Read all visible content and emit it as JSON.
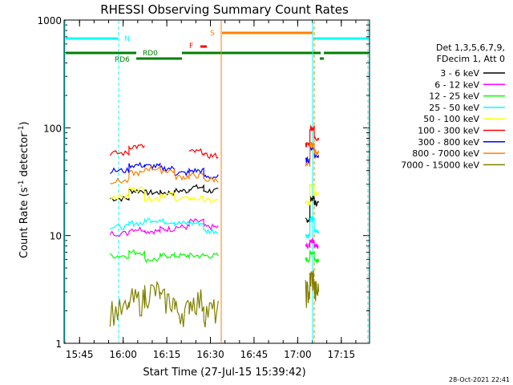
{
  "chart_data": {
    "type": "line",
    "title": "RHESSI Observing Summary Count Rates",
    "xlabel": "Start Time (27-Jul-15 15:39:42)",
    "ylabel": "Count Rate (s",
    "ylabel_sup1": "-1",
    "ylabel_mid": " detector",
    "ylabel_sup2": "-1",
    "ylabel_end": ")",
    "yscale": "log",
    "ylim": [
      1,
      1000
    ],
    "xlim_min": [
      0,
      105
    ],
    "x_start": "15:39:42",
    "x_ticks": [
      {
        "label": "15:45",
        "t": 5.3
      },
      {
        "label": "16:00",
        "t": 20.3
      },
      {
        "label": "16:15",
        "t": 35.3
      },
      {
        "label": "16:30",
        "t": 50.3
      },
      {
        "label": "16:45",
        "t": 65.3
      },
      {
        "label": "17:00",
        "t": 80.3
      },
      {
        "label": "17:15",
        "t": 95.3
      }
    ],
    "y_ticks": [
      {
        "label": "1",
        "v": 1
      },
      {
        "label": "10",
        "v": 10
      },
      {
        "label": "100",
        "v": 100
      },
      {
        "label": "1000",
        "v": 1000
      }
    ],
    "legend_header": [
      "Det 1,3,5,6,7,9,",
      "FDecim 1, Att 0"
    ],
    "legend_position": "right",
    "series": [
      {
        "name": "3 - 6 keV",
        "color": "#000000",
        "values": [
          22,
          26,
          25,
          25,
          26,
          28,
          26,
          0,
          0,
          14,
          22,
          20
        ]
      },
      {
        "name": "6 - 12 keV",
        "color": "#ff00ff",
        "values": [
          10.5,
          11.5,
          11,
          11.5,
          12,
          13.5,
          12,
          0,
          0,
          8,
          9,
          8
        ]
      },
      {
        "name": "12 - 25 keV",
        "color": "#00ff00",
        "values": [
          6.5,
          7,
          6,
          6.5,
          6.5,
          6.5,
          6.5,
          0,
          0,
          6,
          7,
          6
        ]
      },
      {
        "name": "25 - 50 keV",
        "color": "#00ffff",
        "values": [
          12,
          13,
          14,
          13.5,
          13,
          13,
          11,
          0,
          0,
          10,
          14,
          11
        ]
      },
      {
        "name": "50 - 100 keV",
        "color": "#ffff00",
        "values": [
          23,
          27,
          22,
          24,
          22,
          22,
          21,
          0,
          0,
          20,
          30,
          25
        ]
      },
      {
        "name": "100 - 300 keV",
        "color": "#ff0000",
        "values": [
          58,
          67,
          0,
          0,
          0,
          60,
          55,
          0,
          0,
          70,
          100,
          80
        ]
      },
      {
        "name": "300 - 800 keV",
        "color": "#0000ff",
        "values": [
          40,
          45,
          44,
          42,
          38,
          40,
          35,
          0,
          0,
          50,
          65,
          55
        ]
      },
      {
        "name": "800 - 7000 keV",
        "color": "#ff8000",
        "values": [
          32,
          38,
          42,
          40,
          35,
          36,
          33,
          0,
          0,
          45,
          70,
          60
        ]
      },
      {
        "name": "7000 - 15000 keV",
        "color": "#808000",
        "values": [
          2,
          2.5,
          3,
          2.5,
          2,
          2.5,
          2,
          0,
          0,
          3,
          4,
          3
        ]
      }
    ],
    "flag_labels": {
      "saa": "N",
      "night": "S",
      "flare": "F",
      "decim_a": "RD0",
      "decim_b": "RD6"
    }
  },
  "footer": {
    "timestamp": "28-Oct-2021 22:41"
  }
}
